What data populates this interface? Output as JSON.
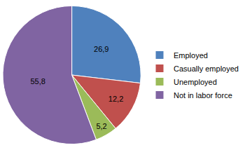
{
  "chart_data": {
    "type": "pie",
    "categories": [
      "Employed",
      "Casually employed",
      "Unemployed",
      "Not in labor force"
    ],
    "values": [
      26.9,
      12.2,
      5.2,
      55.8
    ],
    "value_labels": [
      "26,9",
      "12,2",
      "5,2",
      "55,8"
    ],
    "colors": [
      "#4f81bd",
      "#c0504d",
      "#9bbb59",
      "#8064a2"
    ],
    "data_labels": true,
    "legend": "right"
  }
}
